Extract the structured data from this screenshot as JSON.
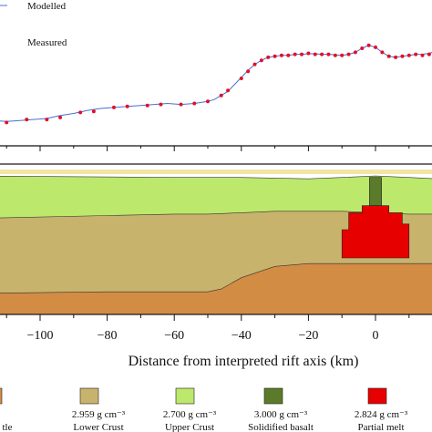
{
  "chart_data": [
    {
      "type": "line",
      "panel": "gravity-profile",
      "x_axis": {
        "xlim": [
          -118,
          18
        ]
      },
      "series": [
        {
          "name": "Modelled",
          "style": "line",
          "color": "#4a6fd1",
          "x": [
            -118,
            -114,
            -110,
            -106,
            -102,
            -98,
            -94,
            -90,
            -86,
            -82,
            -78,
            -74,
            -70,
            -66,
            -62,
            -58,
            -54,
            -50,
            -48,
            -46,
            -44,
            -42,
            -40,
            -38,
            -36,
            -34,
            -32,
            -30,
            -28,
            -26,
            -24,
            -22,
            -20,
            -18,
            -16,
            -14,
            -12,
            -10,
            -8,
            -6,
            -4,
            -2,
            0,
            2,
            4,
            6,
            8,
            10,
            12,
            14,
            16,
            18
          ],
          "y": [
            -46,
            -52,
            -53,
            -52,
            -51,
            -50,
            -47,
            -45,
            -42,
            -40,
            -39,
            -38,
            -37,
            -36,
            -35,
            -36,
            -35,
            -33,
            -31,
            -27,
            -23,
            -16,
            -9,
            -2,
            4,
            8,
            11,
            12,
            13,
            13,
            14,
            14,
            14.5,
            14.5,
            14,
            14,
            13.5,
            13,
            14,
            16,
            20,
            23,
            21,
            16,
            12,
            11,
            12,
            13,
            14,
            14,
            15,
            17
          ]
        },
        {
          "name": "Measured",
          "style": "points",
          "color": "#e0102a",
          "x": [
            -118,
            -114,
            -110,
            -104,
            -98,
            -94,
            -88,
            -84,
            -78,
            -74,
            -68,
            -64,
            -58,
            -54,
            -50,
            -46,
            -44,
            -40,
            -38,
            -36,
            -34,
            -32,
            -30,
            -28,
            -26,
            -24,
            -22,
            -20,
            -18,
            -16,
            -14,
            -12,
            -10,
            -8,
            -6,
            -4,
            -2,
            0,
            2,
            4,
            6,
            8,
            10,
            12,
            14,
            16,
            18
          ],
          "y": [
            -47,
            -52,
            -54,
            -51,
            -51,
            -49,
            -44,
            -43,
            -39,
            -38,
            -37,
            -36,
            -36,
            -35,
            -33,
            -27,
            -22,
            -10,
            -3,
            4,
            8,
            11,
            12,
            13,
            13,
            14,
            14,
            15,
            14,
            14,
            14,
            13,
            13,
            14,
            16,
            20,
            23,
            21,
            16,
            12,
            11,
            12,
            13,
            14,
            13,
            14,
            16
          ]
        }
      ],
      "legend": {
        "placement": "top-left",
        "entries": [
          "Modelled",
          "Measured"
        ]
      }
    },
    {
      "type": "area",
      "panel": "density-model",
      "x_axis": {
        "label": "Distance from interpreted rift axis (km)",
        "xlim": [
          -118,
          18
        ],
        "ticks": [
          -100,
          -80,
          -60,
          -40,
          -20,
          0
        ],
        "tick_labels": [
          "−100",
          "−80",
          "−60",
          "−40",
          "−20",
          "0"
        ]
      },
      "ylim": [
        0,
        1
      ],
      "layers": [
        {
          "name": "sediment",
          "color": "#f2e4a6",
          "boundary_x": [
            -118,
            -60,
            -40,
            -20,
            0,
            18
          ],
          "boundary_y": [
            0,
            0,
            0,
            0,
            0,
            0
          ]
        },
        {
          "name": "Upper Crust",
          "color": "#bce86c",
          "top_x": [
            -118,
            -60,
            -40,
            -20,
            -10,
            0,
            10,
            18
          ],
          "top_y": [
            0.02,
            0.03,
            0.03,
            0.04,
            0.03,
            0.02,
            0.03,
            0.04
          ]
        },
        {
          "name": "Lower Crust",
          "color": "#c8b36c",
          "top_x": [
            -118,
            -80,
            -60,
            -50,
            -40,
            -30,
            -20,
            -10,
            0,
            10,
            18
          ],
          "top_y": [
            0.32,
            0.3,
            0.29,
            0.29,
            0.28,
            0.27,
            0.27,
            0.27,
            0.28,
            0.29,
            0.29
          ]
        },
        {
          "name": "Mantle",
          "color": "#d38c44",
          "top_x": [
            -118,
            -80,
            -60,
            -50,
            -46,
            -40,
            -30,
            -20,
            -10,
            0,
            10,
            18
          ],
          "top_y": [
            0.85,
            0.84,
            0.84,
            0.84,
            0.82,
            0.74,
            0.66,
            0.64,
            0.64,
            0.64,
            0.64,
            0.64
          ]
        }
      ],
      "bodies": [
        {
          "name": "Solidified basalt",
          "color": "#5b7a2a",
          "polygon_x": [
            -1.8,
            1.8,
            1.8,
            -1.8
          ],
          "polygon_y": [
            0.03,
            0.03,
            0.23,
            0.23
          ]
        },
        {
          "name": "Partial melt",
          "color": "#e60000",
          "polygon_x": [
            -4,
            4,
            4,
            8,
            8,
            10,
            10,
            -10,
            -10,
            -8,
            -8,
            -4
          ],
          "polygon_y": [
            0.23,
            0.23,
            0.28,
            0.28,
            0.36,
            0.36,
            0.6,
            0.6,
            0.4,
            0.4,
            0.28,
            0.28
          ]
        }
      ]
    }
  ],
  "legend_key": [
    {
      "swatch_color": "#d38c44",
      "density": "",
      "label": "tle"
    },
    {
      "swatch_color": "#c8b36c",
      "density": "2.959 g cm⁻³",
      "label": "Lower Crust"
    },
    {
      "swatch_color": "#bce86c",
      "density": "2.700 g cm⁻³",
      "label": "Upper Crust"
    },
    {
      "swatch_color": "#5b7a2a",
      "density": "3.000 g cm⁻³",
      "label": "Solidified basalt"
    },
    {
      "swatch_color": "#e60000",
      "density": "2.824 g cm⁻³",
      "label": "Partial melt"
    }
  ]
}
